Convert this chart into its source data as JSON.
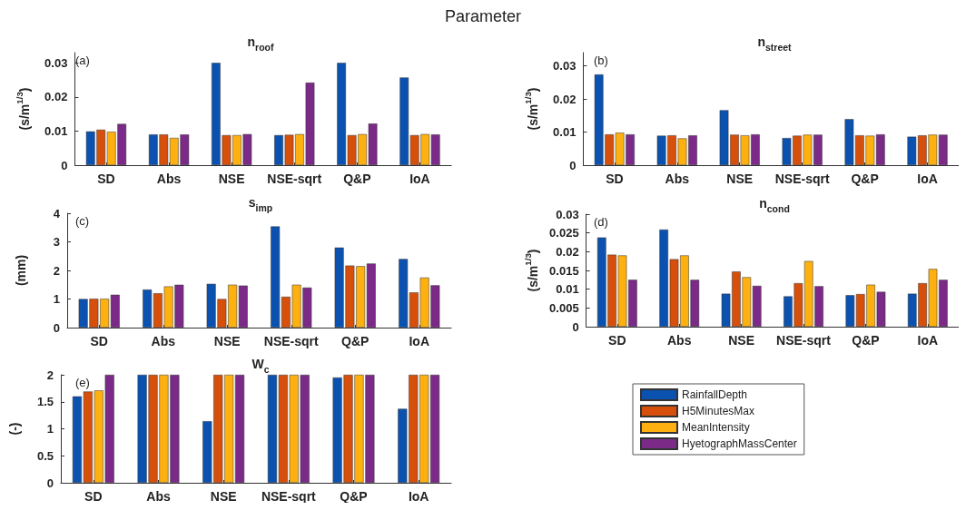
{
  "chart_data": [
    {
      "type": "bar",
      "title": "n$_{roof}$",
      "ylabel": "(s/m$^{1/3}$)",
      "annotations": [
        "(a)",
        "Parameter"
      ],
      "categories": [
        "SD",
        "Abs",
        "NSE",
        "NSE-sqrt",
        "Q&P",
        "IoA"
      ],
      "series": [
        {
          "color": "#0b52b0",
          "values": [
            0.0099,
            0.009,
            0.03,
            0.0088,
            0.03,
            0.0257
          ]
        },
        {
          "color": "#d6500c",
          "values": [
            0.0104,
            0.009,
            0.0088,
            0.0089,
            0.0088,
            0.0088
          ]
        },
        {
          "color": "#fdb010",
          "values": [
            0.0098,
            0.008,
            0.0088,
            0.0091,
            0.0091,
            0.0091
          ]
        },
        {
          "color": "#7b2a87",
          "values": [
            0.0121,
            0.009,
            0.0091,
            0.0242,
            0.0122,
            0.009
          ]
        }
      ],
      "ylim": [
        0,
        0.033
      ],
      "yticks": [
        0,
        0.01,
        0.02,
        0.03
      ],
      "grid": false,
      "legend": false
    },
    {
      "type": "bar",
      "title": "n$_{street}$",
      "ylabel": "(s/m$^{1/3}$)",
      "annotations": [
        "(b)"
      ],
      "categories": [
        "SD",
        "Abs",
        "NSE",
        "NSE-sqrt",
        "Q&P",
        "IoA"
      ],
      "series": [
        {
          "color": "#0b52b0",
          "values": [
            0.0274,
            0.0089,
            0.0166,
            0.0082,
            0.0139,
            0.0086
          ]
        },
        {
          "color": "#d6500c",
          "values": [
            0.0093,
            0.009,
            0.0092,
            0.0089,
            0.009,
            0.009
          ]
        },
        {
          "color": "#fdb010",
          "values": [
            0.0098,
            0.0081,
            0.009,
            0.0092,
            0.0089,
            0.0092
          ]
        },
        {
          "color": "#7b2a87",
          "values": [
            0.0093,
            0.009,
            0.0093,
            0.0092,
            0.0093,
            0.0092
          ]
        }
      ],
      "ylim": [
        0,
        0.034
      ],
      "yticks": [
        0,
        0.01,
        0.02,
        0.03
      ],
      "grid": false,
      "legend": false
    },
    {
      "type": "bar",
      "title": "s$_{imp}$",
      "ylabel": "(mm)",
      "annotations": [
        "(c)"
      ],
      "categories": [
        "SD",
        "Abs",
        "NSE",
        "NSE-sqrt",
        "Q&P",
        "IoA"
      ],
      "series": [
        {
          "color": "#0b52b0",
          "values": [
            1.0,
            1.33,
            1.53,
            3.54,
            2.8,
            2.4
          ]
        },
        {
          "color": "#d6500c",
          "values": [
            1.01,
            1.2,
            1.0,
            1.08,
            2.17,
            1.23
          ]
        },
        {
          "color": "#fdb010",
          "values": [
            1.01,
            1.44,
            1.5,
            1.5,
            2.15,
            1.75
          ]
        },
        {
          "color": "#7b2a87",
          "values": [
            1.15,
            1.5,
            1.47,
            1.4,
            2.24,
            1.48
          ]
        }
      ],
      "ylim": [
        0,
        4
      ],
      "yticks": [
        0,
        1,
        2,
        3,
        4
      ],
      "grid": false,
      "legend": false
    },
    {
      "type": "bar",
      "title": "n$_{cond}$",
      "ylabel": "(s/m$^{1/3}$)",
      "annotations": [
        "(d)"
      ],
      "categories": [
        "SD",
        "Abs",
        "NSE",
        "NSE-sqrt",
        "Q&P",
        "IoA"
      ],
      "series": [
        {
          "color": "#0b52b0",
          "values": [
            0.0238,
            0.0259,
            0.0088,
            0.0081,
            0.0084,
            0.0088
          ]
        },
        {
          "color": "#d6500c",
          "values": [
            0.0192,
            0.018,
            0.0147,
            0.0116,
            0.0087,
            0.0116
          ]
        },
        {
          "color": "#fdb010",
          "values": [
            0.019,
            0.019,
            0.0132,
            0.0175,
            0.0112,
            0.0154
          ]
        },
        {
          "color": "#7b2a87",
          "values": [
            0.0125,
            0.0125,
            0.0109,
            0.0108,
            0.0093,
            0.0125
          ]
        }
      ],
      "ylim": [
        0,
        0.03
      ],
      "yticks": [
        0,
        0.005,
        0.01,
        0.015,
        0.02,
        0.025,
        0.03
      ],
      "grid": false,
      "legend": false
    },
    {
      "type": "bar",
      "title": "W$_{c}$",
      "ylabel": "(-)",
      "annotations": [
        "(e)"
      ],
      "categories": [
        "SD",
        "Abs",
        "NSE",
        "NSE-sqrt",
        "Q&P",
        "IoA"
      ],
      "series": [
        {
          "name": "RainfallDepth",
          "color": "#0b52b0",
          "values": [
            1.6,
            2,
            1.14,
            2,
            1.95,
            1.37
          ]
        },
        {
          "name": "H5MinutesMax",
          "color": "#d6500c",
          "values": [
            1.69,
            2,
            2,
            2,
            2,
            2
          ]
        },
        {
          "name": "MeanIntensity",
          "color": "#fdb010",
          "values": [
            1.71,
            2,
            2,
            2,
            2,
            2
          ]
        },
        {
          "name": "HyetographMassCenter",
          "color": "#7b2a87",
          "values": [
            2,
            2,
            2,
            2,
            2,
            2
          ]
        }
      ],
      "ylim": [
        0,
        2
      ],
      "yticks": [
        0,
        0.5,
        1,
        1.5,
        2
      ],
      "grid": false,
      "legend": "right"
    }
  ]
}
